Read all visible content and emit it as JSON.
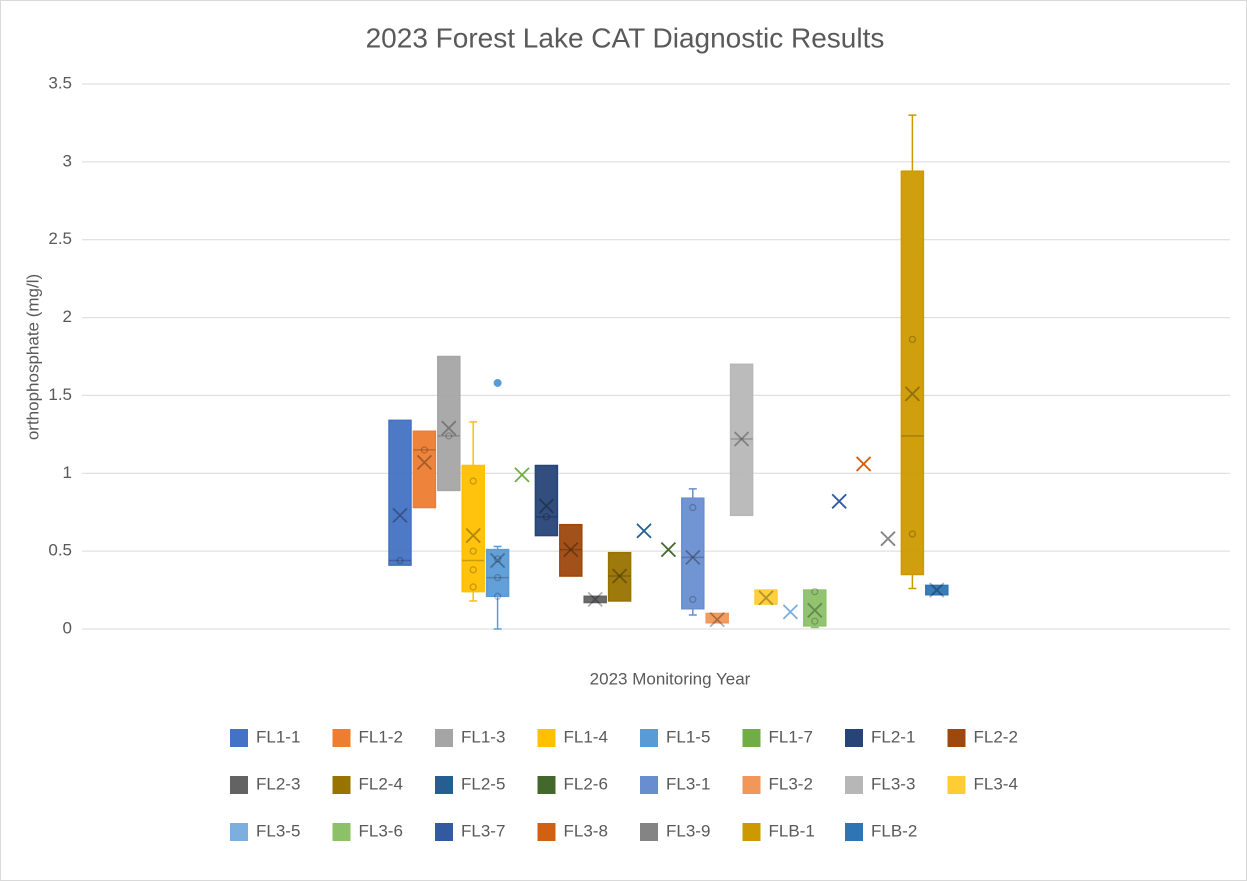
{
  "chart_data": {
    "type": "box",
    "title": "2023 Forest Lake CAT Diagnostic Results",
    "y_label": "orthophosphate (mg/l)",
    "x_label": "2023 Monitoring Year",
    "ylim": [
      0,
      3.5
    ],
    "yticks": [
      0,
      0.5,
      1,
      1.5,
      2,
      2.5,
      3,
      3.5
    ],
    "grid": true,
    "legend": "bottom",
    "series": [
      {
        "name": "FL1-1",
        "color": "#4472c4",
        "q1": 0.41,
        "median": 0.44,
        "q3": 1.34,
        "mean": 0.73,
        "points": [
          0.44
        ]
      },
      {
        "name": "FL1-2",
        "color": "#ed7d31",
        "q1": 0.78,
        "median": 1.15,
        "q3": 1.27,
        "mean": 1.07,
        "points": [
          1.15
        ]
      },
      {
        "name": "FL1-3",
        "color": "#a5a5a5",
        "q1": 0.89,
        "median": 1.24,
        "q3": 1.75,
        "mean": 1.29,
        "points": [
          1.24
        ]
      },
      {
        "name": "FL1-4",
        "color": "#ffc000",
        "min": 0.18,
        "q1": 0.24,
        "median": 0.44,
        "q3": 1.05,
        "max": 1.33,
        "mean": 0.6,
        "points": [
          0.27,
          0.38,
          0.5,
          0.95
        ]
      },
      {
        "name": "FL1-5",
        "color": "#5b9bd5",
        "min": 0,
        "q1": 0.21,
        "median": 0.33,
        "q3": 0.51,
        "max": 0.53,
        "mean": 0.44,
        "points": [
          0.21,
          0.33,
          0.45
        ],
        "outliers": [
          1.58
        ]
      },
      {
        "name": "FL1-7",
        "color": "#70ad47",
        "mean": 0.99
      },
      {
        "name": "FL2-1",
        "color": "#264478",
        "q1": 0.6,
        "median": 0.72,
        "q3": 1.05,
        "mean": 0.79,
        "points": [
          0.72
        ]
      },
      {
        "name": "FL2-2",
        "color": "#9e480e",
        "q1": 0.34,
        "median": 0.51,
        "q3": 0.67,
        "mean": 0.51
      },
      {
        "name": "FL2-3",
        "color": "#636363",
        "q1": 0.17,
        "q3": 0.21,
        "mean": 0.19
      },
      {
        "name": "FL2-4",
        "color": "#997300",
        "q1": 0.18,
        "median": 0.34,
        "q3": 0.49,
        "mean": 0.34
      },
      {
        "name": "FL2-5",
        "color": "#255e91",
        "mean": 0.63
      },
      {
        "name": "FL2-6",
        "color": "#43682b",
        "mean": 0.51
      },
      {
        "name": "FL3-1",
        "color": "#698ed0",
        "min": 0.09,
        "q1": 0.13,
        "median": 0.46,
        "q3": 0.84,
        "max": 0.9,
        "mean": 0.46,
        "points": [
          0.19,
          0.78
        ]
      },
      {
        "name": "FL3-2",
        "color": "#f1975a",
        "q1": 0.04,
        "q3": 0.1,
        "mean": 0.06
      },
      {
        "name": "FL3-3",
        "color": "#b7b7b7",
        "q1": 0.73,
        "median": 1.22,
        "q3": 1.7,
        "mean": 1.22
      },
      {
        "name": "FL3-4",
        "color": "#ffcd33",
        "q1": 0.16,
        "q3": 0.25,
        "mean": 0.2
      },
      {
        "name": "FL3-5",
        "color": "#7cafdd",
        "mean": 0.11
      },
      {
        "name": "FL3-6",
        "color": "#8cc168",
        "min": 0.01,
        "q1": 0.02,
        "q3": 0.25,
        "mean": 0.12,
        "points": [
          0.05,
          0.24
        ]
      },
      {
        "name": "FL3-7",
        "color": "#335aa1",
        "mean": 0.82
      },
      {
        "name": "FL3-8",
        "color": "#d26012",
        "mean": 1.06
      },
      {
        "name": "FL3-9",
        "color": "#848484",
        "mean": 0.58
      },
      {
        "name": "FLB-1",
        "color": "#cc9a00",
        "min": 0.26,
        "q1": 0.35,
        "median": 1.24,
        "q3": 2.94,
        "max": 3.3,
        "mean": 1.51,
        "points": [
          0.61,
          1.86
        ]
      },
      {
        "name": "FLB-2",
        "color": "#2e75b6",
        "q1": 0.22,
        "q3": 0.28,
        "mean": 0.25
      }
    ]
  }
}
